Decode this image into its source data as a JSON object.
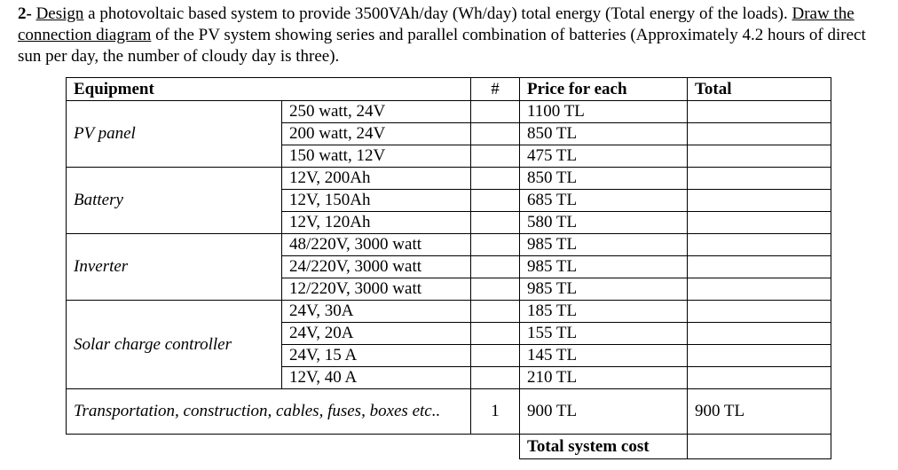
{
  "question": {
    "number": "2-",
    "design": "Design",
    "text1": " a photovoltaic based system to provide 3500VAh/day (Wh/day) total energy (Total energy of the loads).",
    "draw": "Draw the connection diagram",
    "text2": " of the PV system showing series and parallel combination of batteries (Approximately 4.2 hours of direct sun per day, the number of cloudy day is three)."
  },
  "table": {
    "headers": {
      "equipment": "Equipment",
      "count": "#",
      "price": "Price for each",
      "total": "Total"
    },
    "groups": [
      {
        "name": "PV panel",
        "items": [
          {
            "spec": "250 watt, 24V",
            "price": "1100 TL"
          },
          {
            "spec": "200 watt, 24V",
            "price": "850 TL"
          },
          {
            "spec": "150 watt, 12V",
            "price": "475 TL"
          }
        ]
      },
      {
        "name": "Battery",
        "items": [
          {
            "spec": "12V, 200Ah",
            "price": "850 TL"
          },
          {
            "spec": "12V, 150Ah",
            "price": "685 TL"
          },
          {
            "spec": "12V, 120Ah",
            "price": "580 TL"
          }
        ]
      },
      {
        "name": "Inverter",
        "items": [
          {
            "spec": "48/220V, 3000 watt",
            "price": "985 TL"
          },
          {
            "spec": "24/220V, 3000 watt",
            "price": "985 TL"
          },
          {
            "spec": "12/220V, 3000 watt",
            "price": "985 TL"
          }
        ]
      },
      {
        "name": "Solar charge controller",
        "items": [
          {
            "spec": "24V, 30A",
            "price": "185 TL"
          },
          {
            "spec": "24V, 20A",
            "price": "155 TL"
          },
          {
            "spec": "24V, 15 A",
            "price": "145 TL"
          },
          {
            "spec": "12V, 40 A",
            "price": "210 TL"
          }
        ]
      }
    ],
    "misc": {
      "label": "Transportation, construction, cables, fuses, boxes etc..",
      "count": "1",
      "price": "900 TL",
      "total": "900 TL"
    },
    "footer": {
      "label": "Total system cost",
      "value": ""
    }
  }
}
